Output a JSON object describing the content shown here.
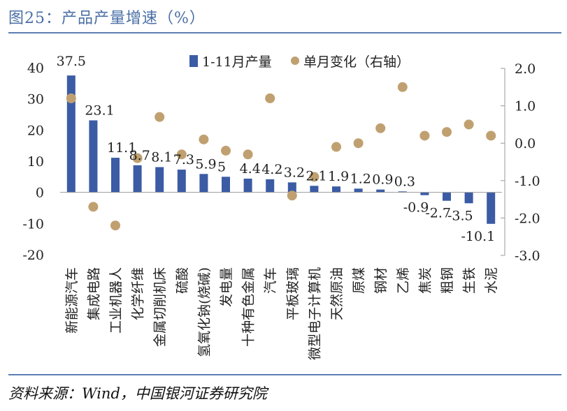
{
  "figure": {
    "title": "图25：产品产量增速（%）",
    "source": "资料来源：Wind，中国银河证券研究院"
  },
  "colors": {
    "bar": "#3b5ba5",
    "dot": "#c0a070",
    "title": "#4a6fa5",
    "rule": "#5b7fb3"
  },
  "chart_data": {
    "type": "bar",
    "categories": [
      "新能源汽车",
      "集成电路",
      "工业机器人",
      "化学纤维",
      "金属切削机床",
      "硫酸",
      "氢氧化钠(烧碱)",
      "发电量",
      "十种有色金属",
      "汽车",
      "平板玻璃",
      "微型电子计算机",
      "天然原油",
      "原煤",
      "钢材",
      "乙烯",
      "焦炭",
      "粗钢",
      "生铁",
      "水泥"
    ],
    "series": [
      {
        "name": "1-11月产量",
        "axis": "left",
        "values": [
          37.5,
          23.1,
          11.1,
          8.7,
          8.1,
          7.3,
          5.9,
          5,
          4.4,
          4.2,
          3.2,
          2.1,
          1.9,
          1.2,
          0.9,
          0.3,
          -0.9,
          -2.7,
          -3.5,
          -10.1
        ],
        "labels": [
          "37.5",
          "23.1",
          "11.1",
          "8.7",
          "8.1",
          "7.3",
          "5.9",
          "5",
          "4.4",
          "4.2",
          "3.2",
          "2.1",
          "1.9",
          "1.2",
          "0.9",
          "0.3",
          "-0.9",
          "-2.7",
          "-3.5",
          "-10.1"
        ]
      },
      {
        "name": "单月变化（右轴）",
        "axis": "right",
        "type": "scatter",
        "values": [
          1.2,
          -1.7,
          -2.2,
          -0.4,
          0.7,
          -0.3,
          0.1,
          -0.2,
          -0.3,
          1.2,
          -1.4,
          -0.9,
          -0.1,
          0.0,
          0.4,
          1.5,
          0.2,
          0.3,
          0.5,
          0.2
        ]
      }
    ],
    "y_left": {
      "min": -20,
      "max": 40,
      "ticks": [
        40,
        30,
        20,
        10,
        0,
        -10,
        -20
      ],
      "tick_labels": [
        "40",
        "30",
        "20",
        "10",
        "0",
        "-10",
        "-20"
      ]
    },
    "y_right": {
      "min": -3.0,
      "max": 2.0,
      "ticks": [
        2.0,
        1.0,
        0.0,
        -1.0,
        -2.0,
        -3.0
      ],
      "tick_labels": [
        "2.0",
        "1.0",
        "0.0",
        "-1.0",
        "-2.0",
        "-3.0"
      ]
    },
    "legend_position": "top-center",
    "grid": false
  }
}
